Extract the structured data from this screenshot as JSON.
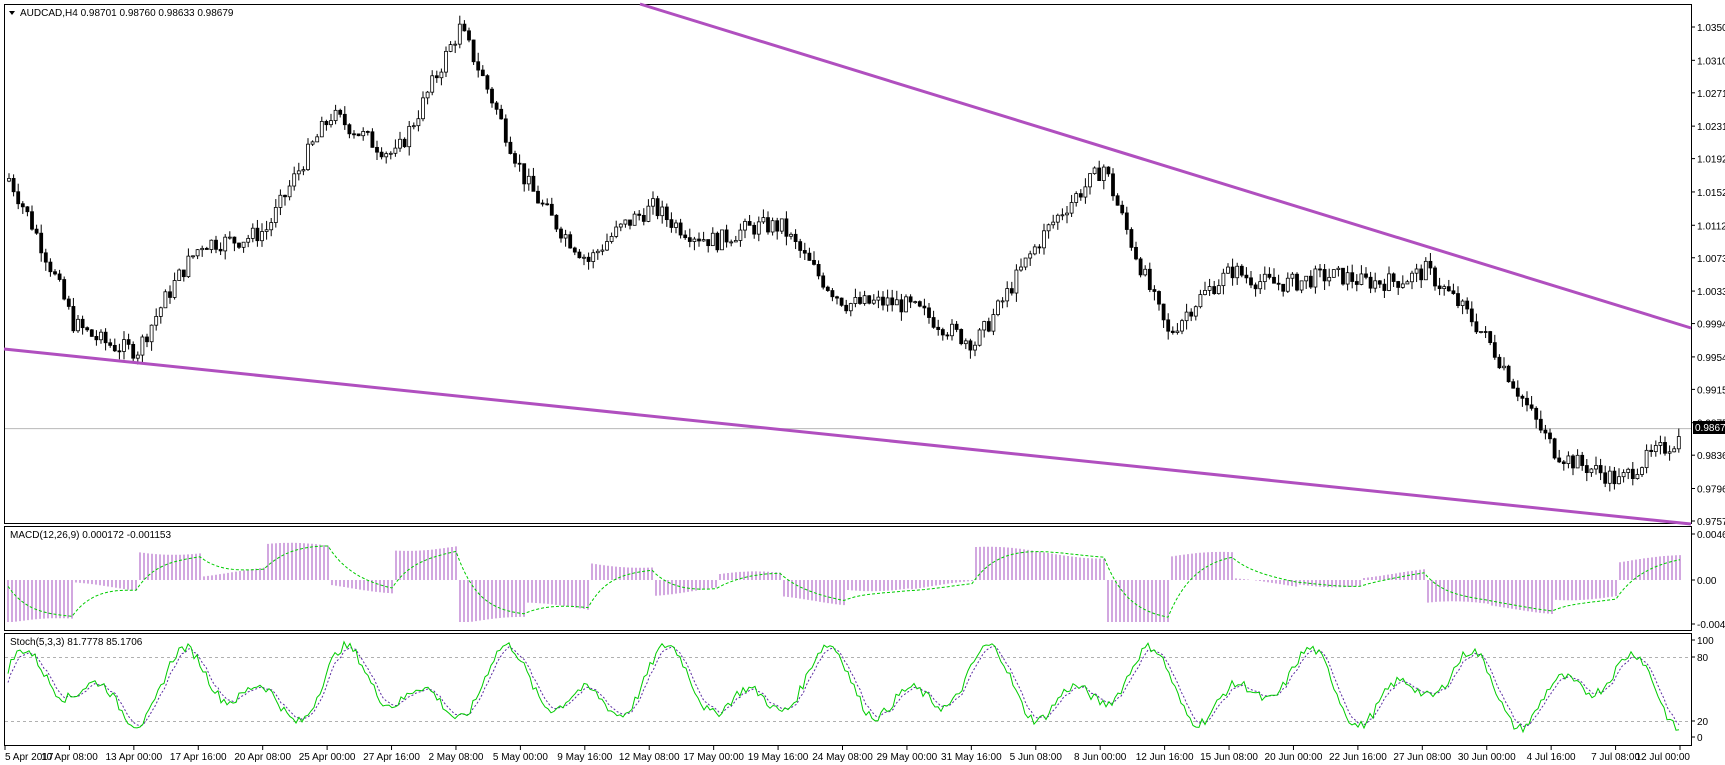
{
  "symbol_header": "AUDCAD,H4  0.98701 0.98760 0.98633 0.98679",
  "current_price": "0.98679",
  "price_axis_labels": [
    "1.03500",
    "1.03100",
    "1.02710",
    "1.02310",
    "1.01920",
    "1.01520",
    "1.01120",
    "1.00730",
    "1.00330",
    "0.99940",
    "0.99540",
    "0.99150",
    "0.98750",
    "0.98360",
    "0.97960",
    "0.97570"
  ],
  "macd": {
    "header": "MACD(12,26,9) 0.000172 -0.001153",
    "axis_labels": [
      "0.00465",
      "0.00",
      "-0.0046"
    ]
  },
  "stoch": {
    "header": "Stoch(5,3,3) 81.7778 85.1706",
    "axis_labels": [
      "100",
      "80",
      "20",
      "0"
    ]
  },
  "time_axis_labels": [
    "5 Apr 2017",
    "10 Apr 08:00",
    "13 Apr 00:00",
    "17 Apr 16:00",
    "20 Apr 08:00",
    "25 Apr 00:00",
    "27 Apr 16:00",
    "2 May 08:00",
    "5 May 00:00",
    "9 May 16:00",
    "12 May 08:00",
    "17 May 00:00",
    "19 May 16:00",
    "24 May 08:00",
    "29 May 00:00",
    "31 May 16:00",
    "5 Jun 08:00",
    "8 Jun 00:00",
    "12 Jun 16:00",
    "15 Jun 08:00",
    "20 Jun 00:00",
    "22 Jun 16:00",
    "27 Jun 08:00",
    "30 Jun 00:00",
    "4 Jul 16:00",
    "7 Jul 08:00",
    "12 Jul 00:00"
  ],
  "trendlines": {
    "color": "#b04fbf"
  },
  "colors": {
    "macd_hist": "#a64fc0",
    "macd_signal": "#00cc00",
    "stoch_main": "#00cc00",
    "stoch_signal": "#5a2ca0",
    "candle": "#000000"
  },
  "chart_data": {
    "type": "candlestick",
    "symbol": "AUDCAD",
    "timeframe": "H4",
    "ylim": [
      0.9757,
      1.035
    ],
    "last_close": 0.98679,
    "close_path": [
      {
        "t": "5 Apr 2017",
        "v": 1.0165
      },
      {
        "t": "10 Apr 08:00",
        "v": 0.9995
      },
      {
        "t": "13 Apr 00:00",
        "v": 0.9965
      },
      {
        "t": "17 Apr 16:00",
        "v": 1.0085
      },
      {
        "t": "20 Apr 08:00",
        "v": 1.0115
      },
      {
        "t": "25 Apr 00:00",
        "v": 1.0235
      },
      {
        "t": "27 Apr 16:00",
        "v": 1.0205
      },
      {
        "t": "2 May 08:00",
        "v": 1.034
      },
      {
        "t": "5 May 00:00",
        "v": 1.0175
      },
      {
        "t": "9 May 16:00",
        "v": 1.0065
      },
      {
        "t": "12 May 08:00",
        "v": 1.0135
      },
      {
        "t": "17 May 00:00",
        "v": 1.0095
      },
      {
        "t": "19 May 16:00",
        "v": 1.0105
      },
      {
        "t": "24 May 08:00",
        "v": 1.0025
      },
      {
        "t": "29 May 00:00",
        "v": 1.0005
      },
      {
        "t": "31 May 16:00",
        "v": 0.998
      },
      {
        "t": "5 Jun 08:00",
        "v": 1.0085
      },
      {
        "t": "8 Jun 00:00",
        "v": 1.019
      },
      {
        "t": "12 Jun 16:00",
        "v": 0.9975
      },
      {
        "t": "15 Jun 08:00",
        "v": 1.006
      },
      {
        "t": "20 Jun 00:00",
        "v": 1.0045
      },
      {
        "t": "22 Jun 16:00",
        "v": 1.004
      },
      {
        "t": "27 Jun 08:00",
        "v": 1.0065
      },
      {
        "t": "30 Jun 00:00",
        "v": 0.996
      },
      {
        "t": "4 Jul 16:00",
        "v": 0.985
      },
      {
        "t": "7 Jul 08:00",
        "v": 0.9795
      },
      {
        "t": "12 Jul 00:00",
        "v": 0.98679
      }
    ],
    "upper_trendline": [
      {
        "t": "2 May 08:00",
        "v": 1.0368
      },
      {
        "t": "12 Jul 00:00",
        "v": 0.9989
      }
    ],
    "lower_trendline": [
      {
        "t": "5 Apr 2017",
        "v": 0.9964
      },
      {
        "t": "12 Jul 00:00",
        "v": 0.9758
      }
    ]
  }
}
